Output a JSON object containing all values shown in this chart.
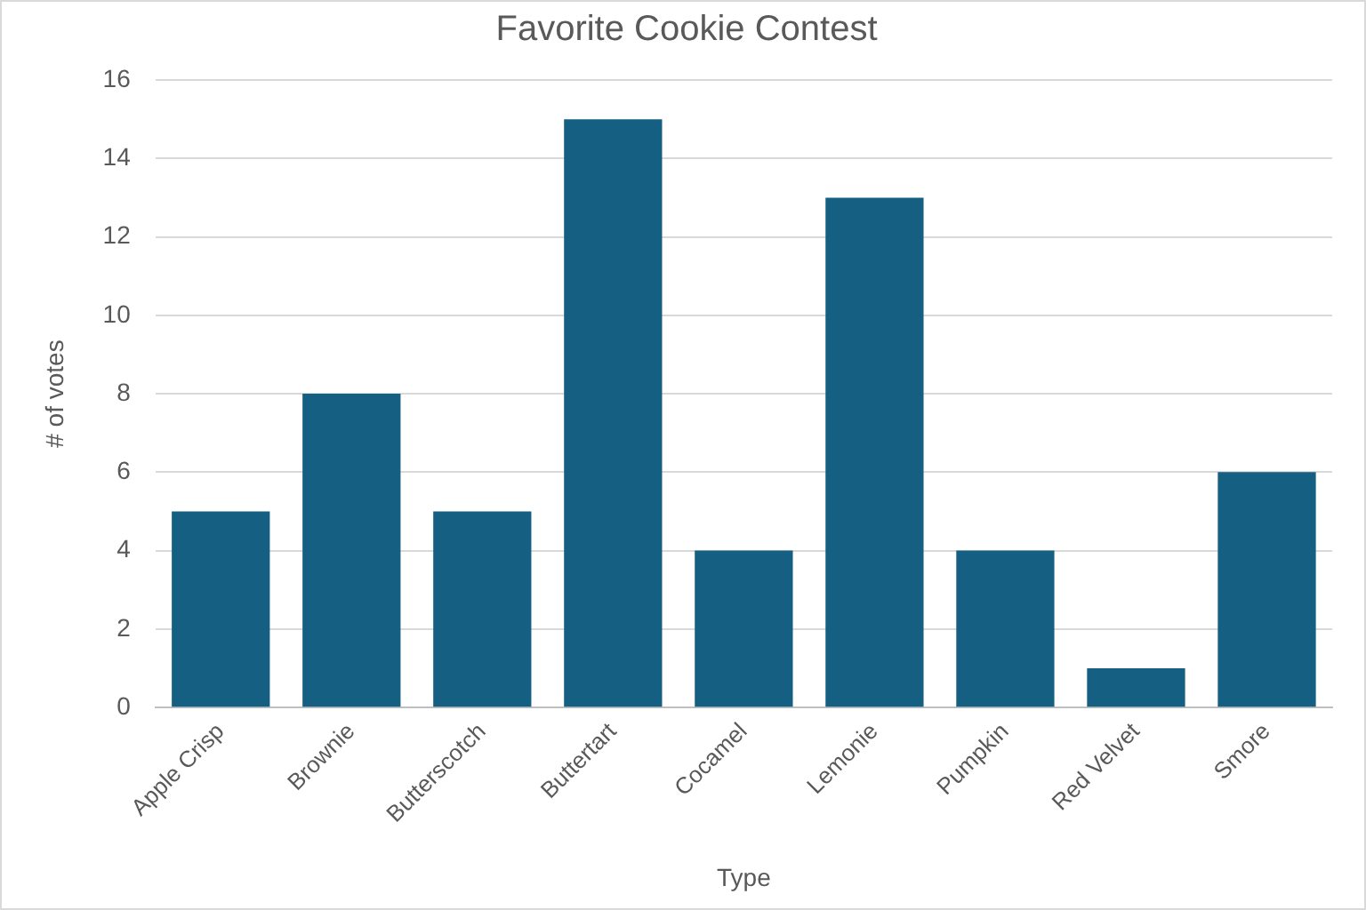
{
  "chart_data": {
    "type": "bar",
    "title": "Favorite Cookie Contest",
    "xlabel": "Type",
    "ylabel": "# of votes",
    "categories": [
      "Apple Crisp",
      "Brownie",
      "Butterscotch",
      "Buttertart",
      "Cocamel",
      "Lemonie",
      "Pumpkin",
      "Red Velvet",
      "Smore"
    ],
    "values": [
      5,
      8,
      5,
      15,
      4,
      13,
      4,
      1,
      6
    ],
    "color": "#155f82",
    "ylim": [
      0,
      16
    ],
    "yticks": [
      0,
      2,
      4,
      6,
      8,
      10,
      12,
      14,
      16
    ],
    "grid": "y"
  }
}
